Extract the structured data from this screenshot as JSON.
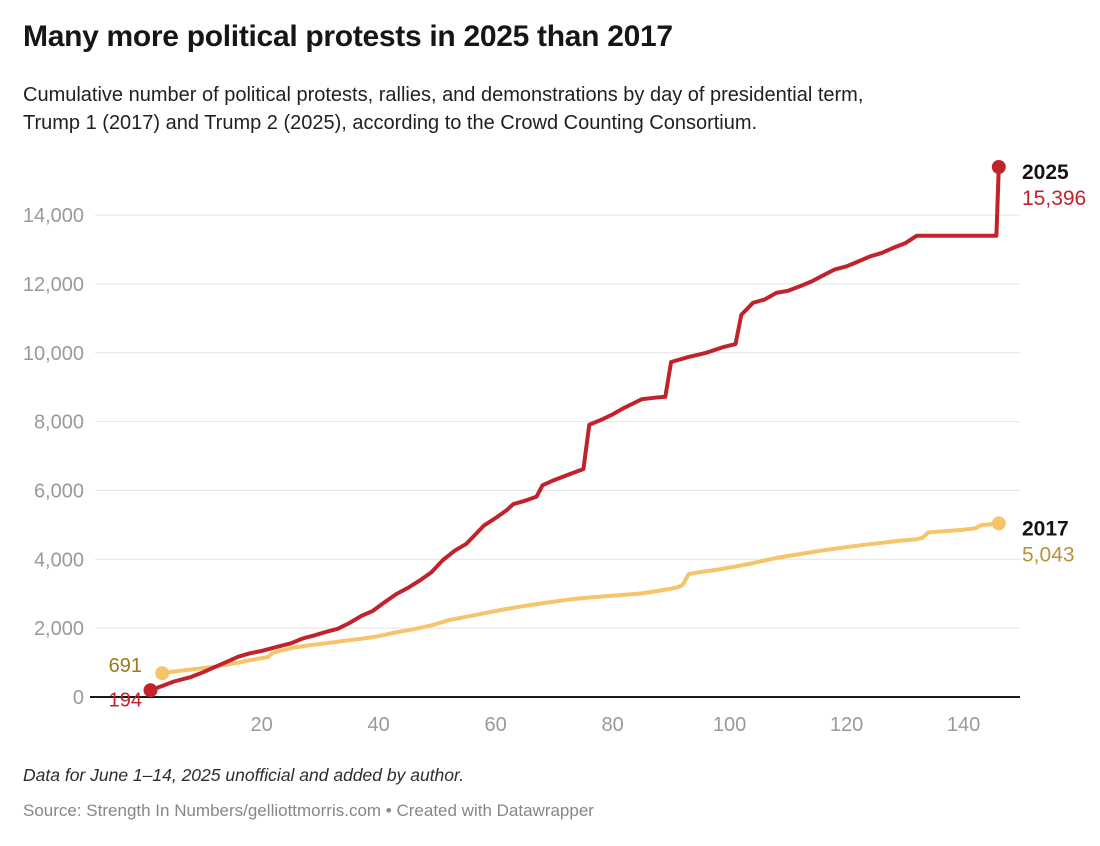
{
  "header": {
    "title": "Many more political protests in 2025 than 2017",
    "subtitle_line1": "Cumulative number of political protests, rallies, and demonstrations by day of presidential term,",
    "subtitle_line2": "Trump 1 (2017) and Trump 2 (2025), according to the Crowd Counting Consortium."
  },
  "footer": {
    "note": "Data for June 1–14, 2025 unofficial and added by author.",
    "source": "Source: Strength In Numbers/gelliottmorris.com • Created with Datawrapper"
  },
  "colors": {
    "grid": "#e4e4e4",
    "axis_line": "#1a1a1a",
    "axis_text": "#999999",
    "text_dark": "#141414"
  },
  "chart_data": {
    "type": "line",
    "title": "Many more political protests in 2025 than 2017",
    "xlabel": "",
    "ylabel": "",
    "xlim": [
      1,
      146
    ],
    "ylim": [
      0,
      15700
    ],
    "grid": "horizontal",
    "x_ticks": [
      20,
      40,
      60,
      80,
      100,
      120,
      140
    ],
    "y_ticks": [
      0,
      2000,
      4000,
      6000,
      8000,
      10000,
      12000,
      14000
    ],
    "y_tick_labels": [
      "0",
      "2,000",
      "4,000",
      "6,000",
      "8,000",
      "10,000",
      "12,000",
      "14,000"
    ],
    "series": [
      {
        "name": "2025",
        "color": "#c0232b",
        "start_label": "194",
        "start_label_color": "#c0232b",
        "end_label": "15,396",
        "end_label_color": "#c0232b",
        "start_value": 194,
        "end_value": 15396,
        "points": [
          [
            1,
            194
          ],
          [
            3,
            320
          ],
          [
            5,
            450
          ],
          [
            8,
            585
          ],
          [
            10,
            720
          ],
          [
            12,
            870
          ],
          [
            14,
            1020
          ],
          [
            16,
            1170
          ],
          [
            18,
            1270
          ],
          [
            20,
            1340
          ],
          [
            22,
            1430
          ],
          [
            25,
            1560
          ],
          [
            27,
            1700
          ],
          [
            29,
            1790
          ],
          [
            31,
            1890
          ],
          [
            33,
            1980
          ],
          [
            35,
            2150
          ],
          [
            37,
            2350
          ],
          [
            39,
            2500
          ],
          [
            41,
            2750
          ],
          [
            43,
            2990
          ],
          [
            45,
            3170
          ],
          [
            47,
            3380
          ],
          [
            49,
            3620
          ],
          [
            51,
            3980
          ],
          [
            53,
            4250
          ],
          [
            55,
            4450
          ],
          [
            58,
            4980
          ],
          [
            60,
            5200
          ],
          [
            62,
            5440
          ],
          [
            63,
            5600
          ],
          [
            65,
            5700
          ],
          [
            67,
            5820
          ],
          [
            68,
            6150
          ],
          [
            70,
            6300
          ],
          [
            72,
            6430
          ],
          [
            74,
            6560
          ],
          [
            75,
            6620
          ],
          [
            76,
            7910
          ],
          [
            78,
            8050
          ],
          [
            80,
            8210
          ],
          [
            82,
            8400
          ],
          [
            85,
            8650
          ],
          [
            88,
            8710
          ],
          [
            89,
            8720
          ],
          [
            90,
            9730
          ],
          [
            93,
            9880
          ],
          [
            96,
            10000
          ],
          [
            99,
            10170
          ],
          [
            101,
            10250
          ],
          [
            102,
            11100
          ],
          [
            104,
            11450
          ],
          [
            106,
            11550
          ],
          [
            108,
            11740
          ],
          [
            110,
            11800
          ],
          [
            112,
            11930
          ],
          [
            114,
            12070
          ],
          [
            116,
            12250
          ],
          [
            118,
            12420
          ],
          [
            120,
            12510
          ],
          [
            122,
            12650
          ],
          [
            124,
            12800
          ],
          [
            126,
            12900
          ],
          [
            128,
            13050
          ],
          [
            130,
            13180
          ],
          [
            132,
            13400
          ],
          [
            145.6,
            13400
          ],
          [
            146,
            15396
          ]
        ]
      },
      {
        "name": "2017",
        "color": "#f6c469",
        "start_label": "691",
        "start_label_color": "#997a1e",
        "end_label": "5,043",
        "end_label_color": "#b79338",
        "start_value": 691,
        "end_value": 5043,
        "points": [
          [
            3,
            691
          ],
          [
            5,
            740
          ],
          [
            8,
            800
          ],
          [
            12,
            880
          ],
          [
            16,
            1000
          ],
          [
            19,
            1100
          ],
          [
            21,
            1160
          ],
          [
            22,
            1290
          ],
          [
            25,
            1420
          ],
          [
            28,
            1500
          ],
          [
            31,
            1560
          ],
          [
            34,
            1630
          ],
          [
            37,
            1690
          ],
          [
            40,
            1770
          ],
          [
            43,
            1880
          ],
          [
            46,
            1970
          ],
          [
            49,
            2080
          ],
          [
            52,
            2230
          ],
          [
            55,
            2330
          ],
          [
            58,
            2430
          ],
          [
            61,
            2530
          ],
          [
            64,
            2620
          ],
          [
            67,
            2700
          ],
          [
            70,
            2770
          ],
          [
            73,
            2840
          ],
          [
            76,
            2890
          ],
          [
            79,
            2930
          ],
          [
            82,
            2970
          ],
          [
            85,
            3010
          ],
          [
            88,
            3090
          ],
          [
            91,
            3180
          ],
          [
            92,
            3260
          ],
          [
            93,
            3570
          ],
          [
            95,
            3630
          ],
          [
            98,
            3700
          ],
          [
            101,
            3790
          ],
          [
            104,
            3890
          ],
          [
            108,
            4040
          ],
          [
            112,
            4150
          ],
          [
            116,
            4260
          ],
          [
            119,
            4330
          ],
          [
            123,
            4420
          ],
          [
            126,
            4480
          ],
          [
            129,
            4540
          ],
          [
            132,
            4580
          ],
          [
            133,
            4630
          ],
          [
            134,
            4780
          ],
          [
            137,
            4820
          ],
          [
            140,
            4860
          ],
          [
            142,
            4900
          ],
          [
            143,
            4990
          ],
          [
            146,
            5043
          ]
        ]
      }
    ]
  }
}
